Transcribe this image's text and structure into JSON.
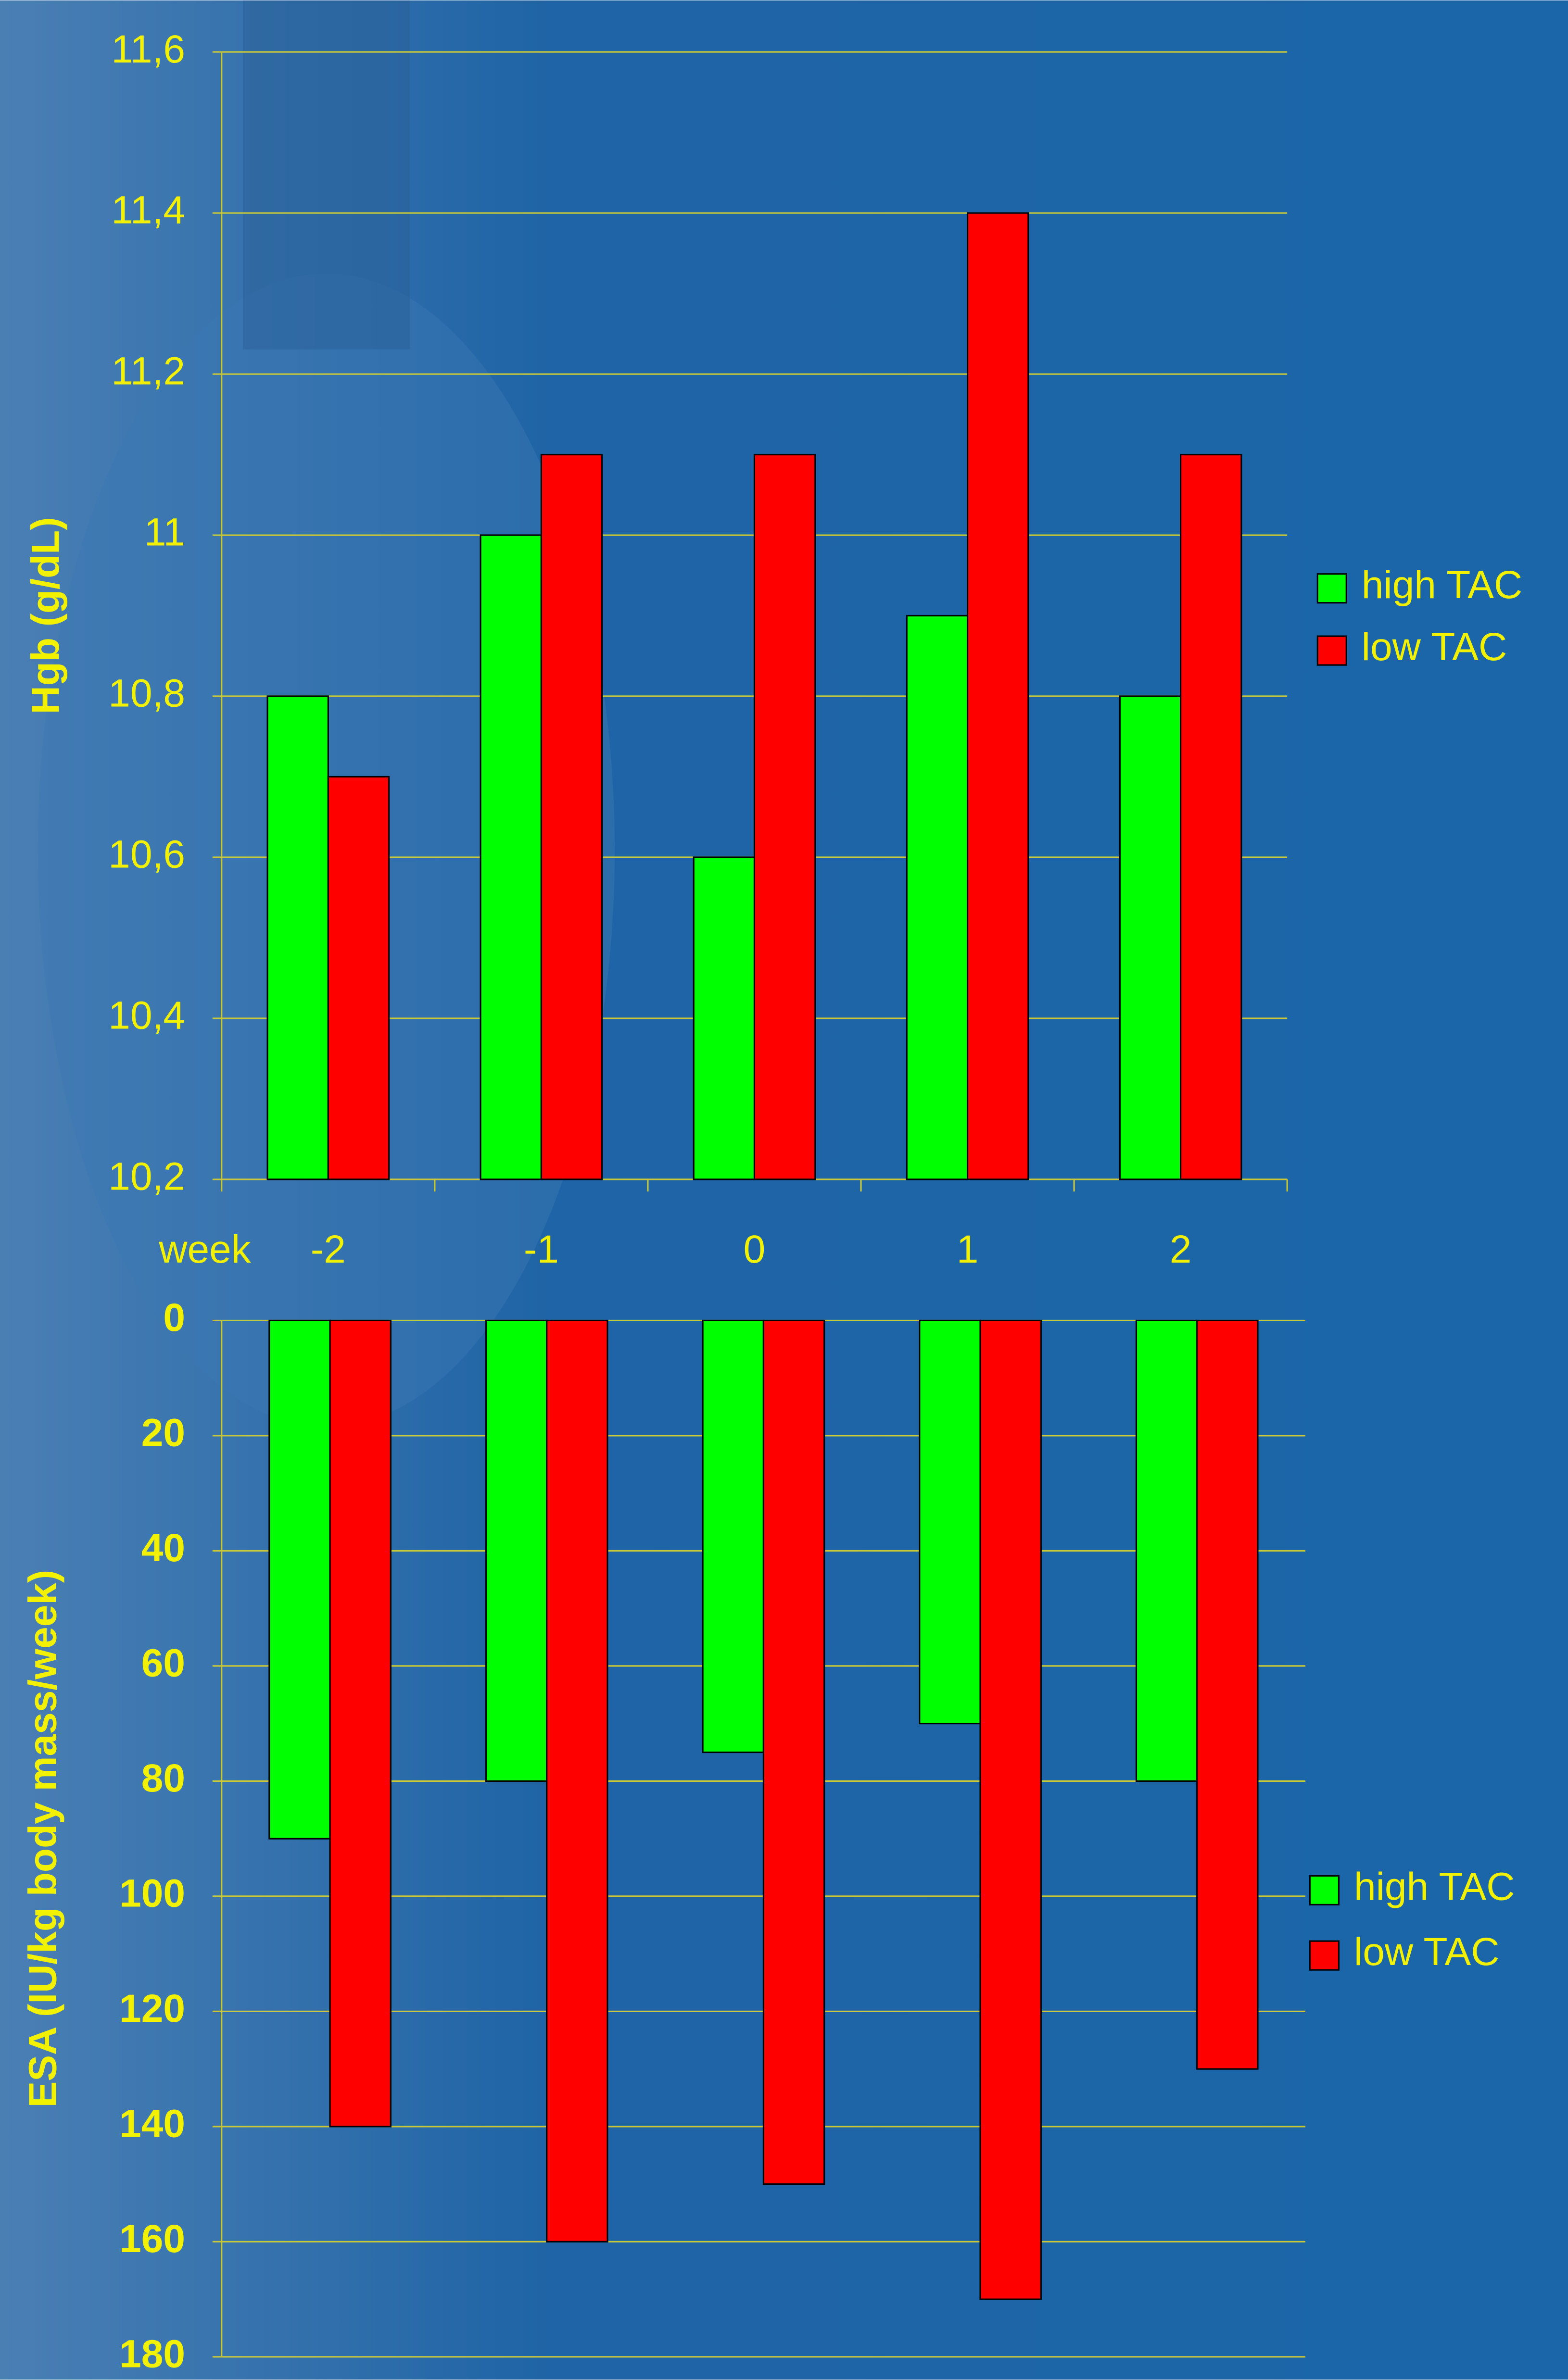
{
  "chart_data": [
    {
      "type": "bar",
      "x_label": "week",
      "y_label": "Hgb (g/dL)",
      "categories": [
        "-2",
        "-1",
        "0",
        "1",
        "2"
      ],
      "series": [
        {
          "name": "high TAC",
          "color": "#00ff00",
          "values": [
            10.8,
            11.0,
            10.6,
            10.9,
            10.8
          ]
        },
        {
          "name": "low TAC",
          "color": "#ff0000",
          "values": [
            10.7,
            11.1,
            11.1,
            11.4,
            11.1
          ]
        }
      ],
      "ylim": [
        10.2,
        11.6
      ],
      "yticks": [
        {
          "value": 10.2,
          "label": "10,2"
        },
        {
          "value": 10.4,
          "label": "10,4"
        },
        {
          "value": 10.6,
          "label": "10,6"
        },
        {
          "value": 10.8,
          "label": "10,8"
        },
        11,
        {
          "value": 11.2,
          "label": "11,2"
        },
        {
          "value": 11.4,
          "label": "11,4"
        },
        {
          "value": 11.6,
          "label": "11,6"
        }
      ],
      "grid": true,
      "legend": "right"
    },
    {
      "type": "bar",
      "y_label": "ESA (IU/kg body mass/week)",
      "categories": [
        null,
        null,
        null,
        null,
        null
      ],
      "series": [
        {
          "name": "high TAC",
          "color": "#00ff00",
          "values": [
            90,
            80,
            75,
            70,
            80
          ]
        },
        {
          "name": "low TAC",
          "color": "#ff0000",
          "values": [
            140,
            160,
            150,
            170,
            130
          ]
        }
      ],
      "ylim": [
        0,
        180
      ],
      "y_inverted": true,
      "yticks": [
        0,
        20,
        40,
        60,
        80,
        100,
        120,
        140,
        160,
        180
      ],
      "grid": true,
      "legend": "right"
    }
  ]
}
